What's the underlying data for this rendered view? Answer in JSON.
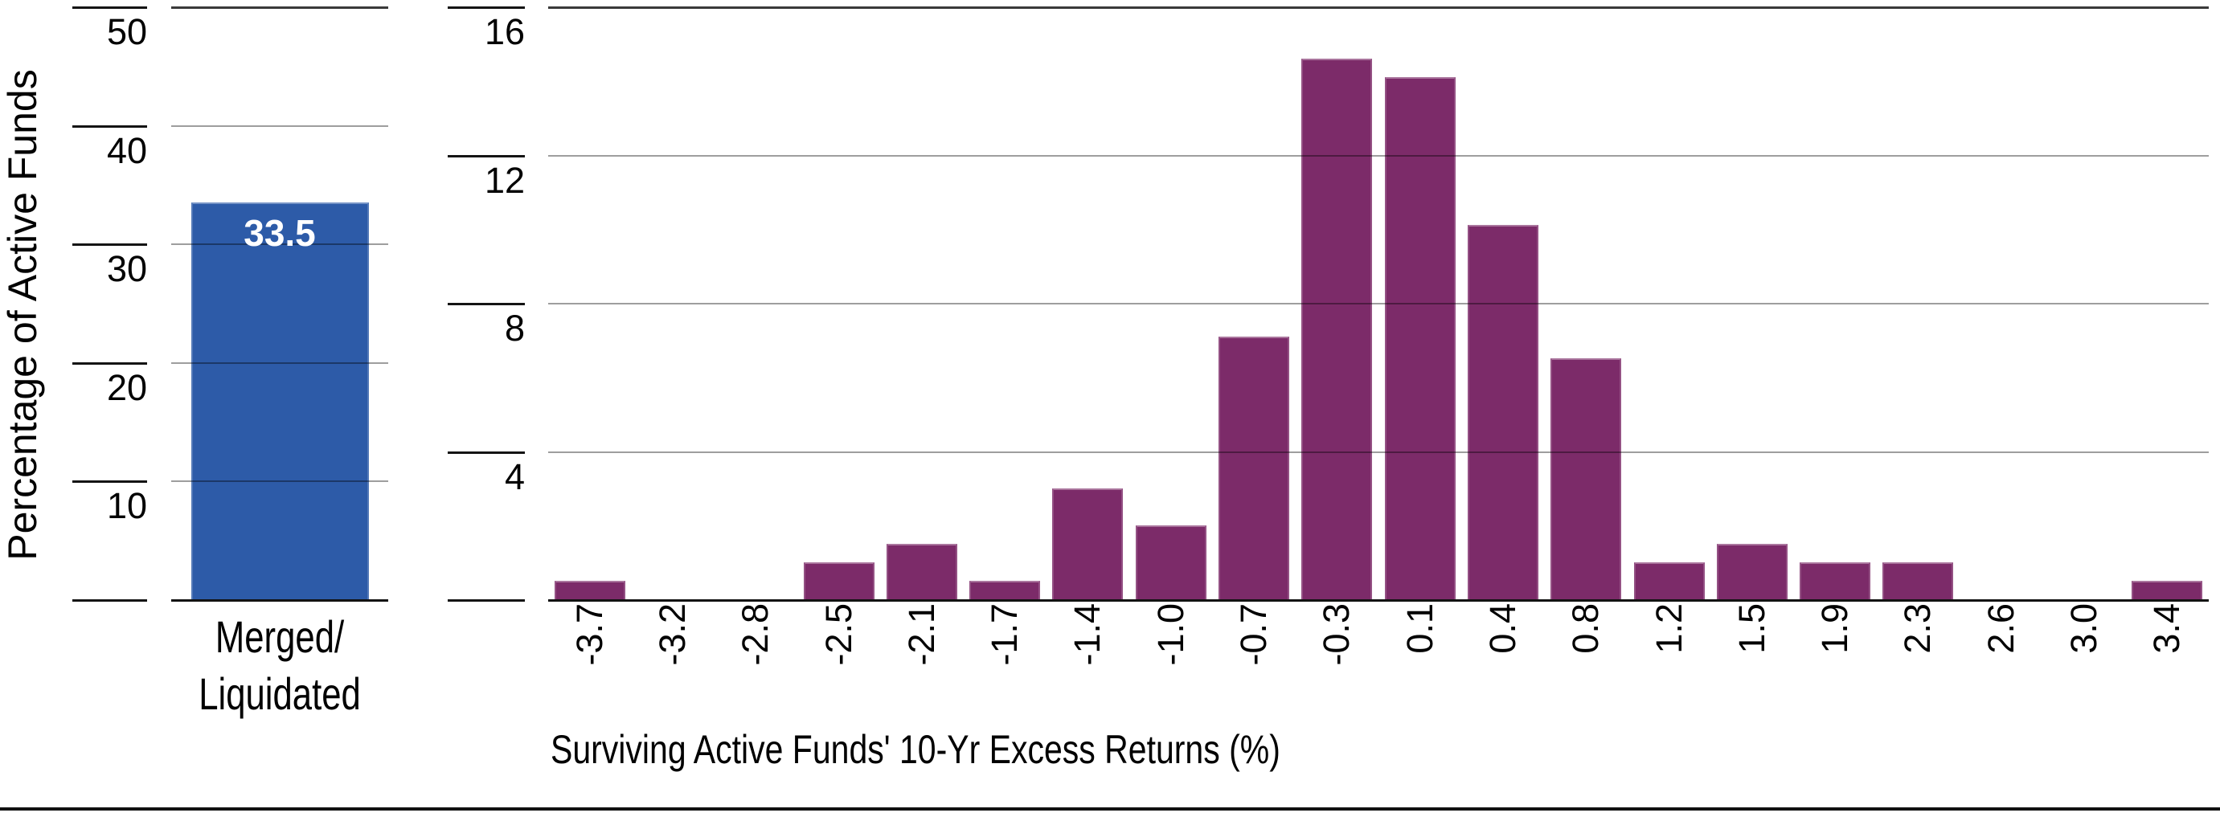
{
  "page": {
    "background": "#ffffff",
    "bottom_rule_color": "#111111"
  },
  "colors": {
    "blue_bar": "#2d5ba8",
    "purple_bar": "#7c2b69",
    "gridline": "rgba(0,0,0,0.38)",
    "axis_dark": "#141414",
    "value_label_text": "#ffffff"
  },
  "chart_data": [
    {
      "type": "bar",
      "title": "",
      "ylabel": "Percentage of Active Funds",
      "xlabel": "",
      "categories": [
        "Merged/Liquidated"
      ],
      "category_lines": [
        "Merged/",
        "Liquidated"
      ],
      "values": [
        33.5
      ],
      "value_labels": [
        "33.5"
      ],
      "yticks": [
        10,
        20,
        30,
        40,
        50
      ],
      "ylim": [
        0,
        50
      ],
      "bar_color": "#2d5ba8",
      "grid": "on",
      "legend_position": "none"
    },
    {
      "type": "bar",
      "title": "",
      "ylabel": "",
      "xlabel": "Surviving Active Funds' 10-Yr Excess Returns (%)",
      "categories": [
        "-3.7",
        "-3.2",
        "-2.8",
        "-2.5",
        "-2.1",
        "-1.7",
        "-1.4",
        "-1.0",
        "-0.7",
        "-0.3",
        "0.1",
        "0.4",
        "0.8",
        "1.2",
        "1.5",
        "1.9",
        "2.3",
        "2.6",
        "3.0",
        "3.4"
      ],
      "values": [
        0.5,
        0,
        0,
        1.0,
        1.5,
        0.5,
        3.0,
        2.0,
        7.1,
        14.6,
        14.1,
        10.1,
        6.5,
        1.0,
        1.5,
        1.0,
        1.0,
        0,
        0,
        0.5
      ],
      "yticks": [
        4,
        8,
        12,
        16
      ],
      "ylim": [
        0,
        16
      ],
      "bar_color": "#7c2b69",
      "grid": "on",
      "legend_position": "none",
      "x_tick_rotation": -90
    }
  ]
}
